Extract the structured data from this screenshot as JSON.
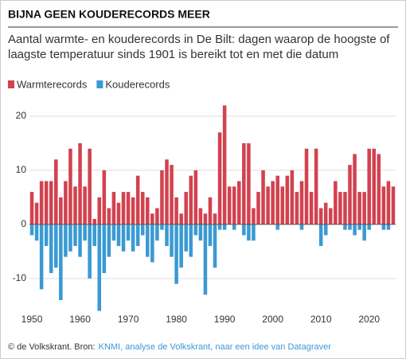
{
  "chart_data": {
    "type": "bar",
    "title": "BIJNA GEEN KOUDERECORDS MEER",
    "subtitle": "Aantal warmte- en kouderecords in De Bilt: dagen waarop de hoogste of laagste temperatuur sinds 1901 is bereikt tot en met die datum",
    "source_prefix": "© de Volkskrant. Bron:",
    "source_link": "KNMI, analyse de Volkskrant, naar een idee van Datagraver",
    "x": [
      1950,
      1951,
      1952,
      1953,
      1954,
      1955,
      1956,
      1957,
      1958,
      1959,
      1960,
      1961,
      1962,
      1963,
      1964,
      1965,
      1966,
      1967,
      1968,
      1969,
      1970,
      1971,
      1972,
      1973,
      1974,
      1975,
      1976,
      1977,
      1978,
      1979,
      1980,
      1981,
      1982,
      1983,
      1984,
      1985,
      1986,
      1987,
      1988,
      1989,
      1990,
      1991,
      1992,
      1993,
      1994,
      1995,
      1996,
      1997,
      1998,
      1999,
      2000,
      2001,
      2002,
      2003,
      2004,
      2005,
      2006,
      2007,
      2008,
      2009,
      2010,
      2011,
      2012,
      2013,
      2014,
      2015,
      2016,
      2017,
      2018,
      2019,
      2020,
      2021,
      2022,
      2023,
      2024,
      2025
    ],
    "series": [
      {
        "name": "Warmterecords",
        "color": "#d2424f",
        "values": [
          6,
          4,
          8,
          8,
          8,
          12,
          5,
          8,
          14,
          7,
          15,
          7,
          14,
          1,
          5,
          10,
          3,
          6,
          4,
          6,
          6,
          5,
          9,
          6,
          5,
          2,
          3,
          10,
          12,
          11,
          5,
          2,
          6,
          9,
          10,
          3,
          2,
          5,
          2,
          17,
          22,
          7,
          7,
          8,
          15,
          15,
          3,
          6,
          10,
          7,
          8,
          9,
          7,
          9,
          10,
          6,
          8,
          14,
          6,
          14,
          3,
          4,
          3,
          8,
          6,
          6,
          11,
          13,
          6,
          6,
          14,
          14,
          13,
          7,
          8,
          7
        ]
      },
      {
        "name": "Kouderecords",
        "color": "#3a9ad3",
        "values": [
          -2,
          -3,
          -12,
          -4,
          -9,
          -8,
          -14,
          -6,
          -5,
          -4,
          -6,
          -3,
          -10,
          -4,
          -16,
          -9,
          -6,
          -3,
          -4,
          -5,
          -3,
          -5,
          -4,
          -2,
          -6,
          -7,
          -3,
          -1,
          -4,
          -6,
          -11,
          -8,
          -5,
          -6,
          -2,
          -3,
          -13,
          -4,
          -8,
          -1,
          -1,
          0,
          -1,
          0,
          -2,
          -3,
          -3,
          0,
          0,
          0,
          0,
          -1,
          0,
          0,
          0,
          0,
          -1,
          0,
          0,
          0,
          -4,
          -2,
          0,
          0,
          0,
          -1,
          -1,
          -2,
          -1,
          -3,
          -1,
          0,
          0,
          -1,
          -1,
          0
        ]
      }
    ],
    "xlim": [
      1949.5,
      2025.5
    ],
    "xticks": [
      1950,
      1960,
      1970,
      1980,
      1990,
      2000,
      2010,
      2020
    ],
    "ylim": [
      -16.5,
      23
    ],
    "yticks": [
      -10,
      0,
      10,
      20
    ],
    "grid": true
  }
}
